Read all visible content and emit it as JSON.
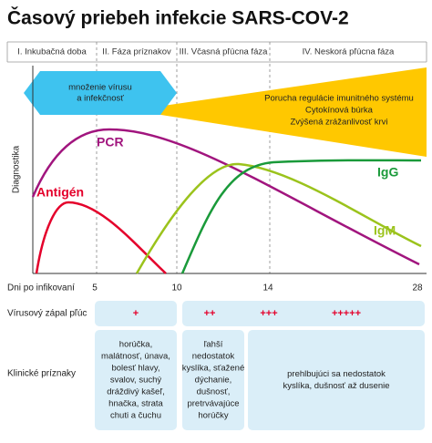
{
  "title": "Časový priebeh infekcie SARS-COV-2",
  "phases": [
    "I. Inkubačná doba",
    "II. Fáza príznakov",
    "III. Včasná pľúcna fáza",
    "IV. Neskorá pľúcna fáza"
  ],
  "virus_box": [
    "množenie vírusu",
    "a infekčnosť"
  ],
  "immune_box": [
    "Porucha regulácie imunitného systému",
    "Cytokínová búrka",
    "Zvýšená zrážanlivosť krvi"
  ],
  "y_axis_label": "Diagnostika",
  "curves": {
    "pcr": "PCR",
    "antigen": "Antigén",
    "igg": "IgG",
    "igm": "IgM"
  },
  "x_axis": {
    "label": "Dni po infikovaní",
    "ticks": [
      5,
      10,
      14,
      28
    ]
  },
  "rows": [
    {
      "label": "Vírusový zápal pľúc",
      "cells": [
        [
          "+"
        ],
        [
          "++",
          "+++",
          "+++++"
        ]
      ]
    },
    {
      "label": "Klinické príznaky",
      "cells": [
        [
          "horúčka,",
          "malátnosť, únava,",
          "bolesť hlavy,",
          "svalov, suchý",
          "dráždivý kašeľ,",
          "hnačka, strata",
          "chuti a čuchu"
        ],
        [
          "ľahší",
          "nedostatok",
          "kyslíka, sťažené",
          "dýchanie,",
          "dušnosť,",
          "pretrvávajúce",
          "horúčky"
        ],
        [
          "prehlbujúci sa nedostatok",
          "kyslíka, dušnosť až dusenie"
        ]
      ]
    }
  ]
}
